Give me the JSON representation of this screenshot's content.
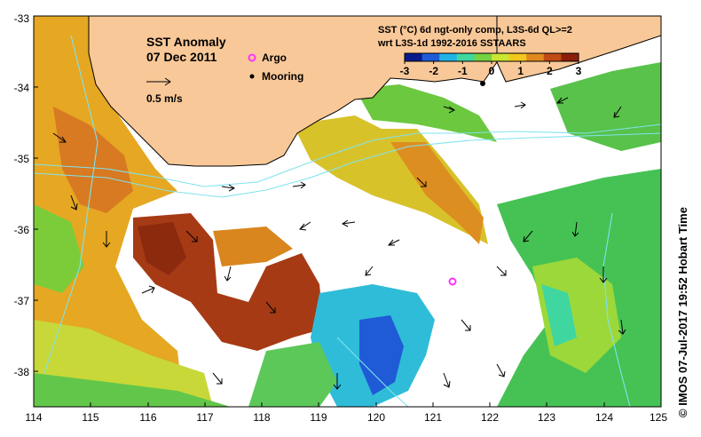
{
  "title": "SST Anomaly",
  "date": "07 Dec 2011",
  "scale_label": "0.5 m/s",
  "legend": {
    "argo_label": "Argo",
    "mooring_label": "Mooring",
    "argo_color": "#ff33ff",
    "mooring_color": "#000000"
  },
  "product": {
    "line1": "SST (°C) 6d ngt-only comp, L3S-6d QL>=2",
    "line2": "wrt L3S-1d 1992-2016 SSTAARS"
  },
  "colorbar": {
    "ticks": [
      "-3",
      "-2",
      "-1",
      "0",
      "1",
      "2",
      "3"
    ],
    "min": -3,
    "max": 3,
    "colors": [
      "#0a1a8c",
      "#1f5bd6",
      "#20b4e6",
      "#3fd6a0",
      "#74d243",
      "#c8e632",
      "#f2c81e",
      "#e08a1e",
      "#c24a14",
      "#8c1e0a"
    ]
  },
  "axes": {
    "lon_ticks": [
      "114",
      "115",
      "116",
      "117",
      "118",
      "119",
      "120",
      "121",
      "122",
      "123",
      "124",
      "125"
    ],
    "lat_ticks": [
      "-33",
      "-34",
      "-35",
      "-36",
      "-37",
      "-38"
    ],
    "lon_range": [
      114,
      125
    ],
    "lat_range": [
      -38.5,
      -33
    ]
  },
  "credit": "© IMOS 07-Jul-2017 19:52 Hobart Time",
  "colors": {
    "land": "#f9c898",
    "no_data": "#ffffff",
    "contour": "#7fe3ef"
  }
}
